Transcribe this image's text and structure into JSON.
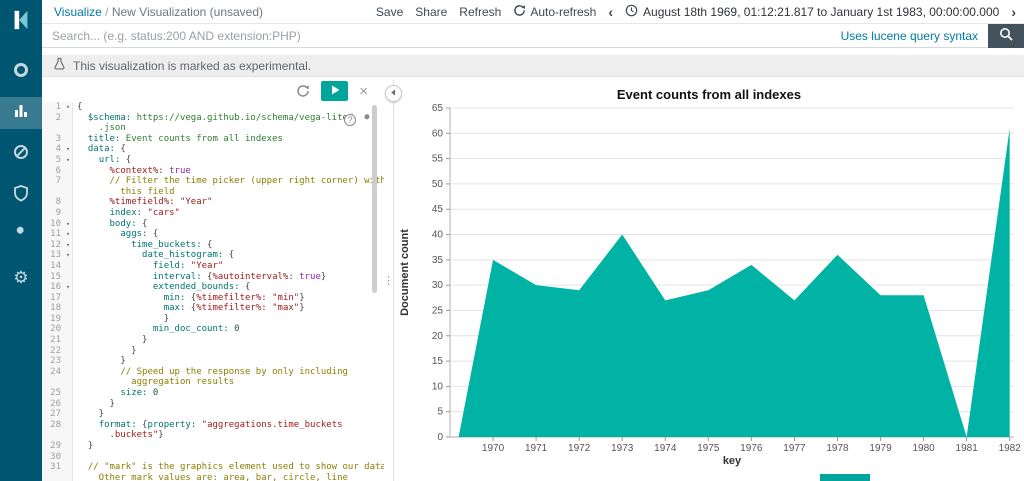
{
  "colors": {
    "sidebar_bg": "#005571",
    "accent_teal": "#00A69B",
    "chart_fill": "#00B3A4",
    "link_teal": "#0079A5",
    "dark_button": "#44525E"
  },
  "topbar": {
    "breadcrumb": {
      "app": "Visualize",
      "separator": " / ",
      "page": "New Visualization (unsaved)"
    },
    "save_label": "Save",
    "share_label": "Share",
    "refresh_label": "Refresh",
    "auto_refresh_label": "Auto-refresh",
    "prev_arrow": "‹",
    "next_arrow": "›",
    "time_range": "August 18th 1969, 01:12:21.817 to January 1st 1983, 00:00:00.000"
  },
  "search": {
    "placeholder": "Search... (e.g. status:200 AND extension:PHP)",
    "syntax_hint": "Uses lucene query syntax"
  },
  "notice": {
    "text": "This visualization is marked as experimental."
  },
  "sidebar": {
    "items": [
      {
        "name": "discover",
        "icon": "ring-icon",
        "active": false
      },
      {
        "name": "visualize",
        "icon": "bar-chart-icon",
        "active": true
      },
      {
        "name": "timelion",
        "icon": "slashed-circle-icon",
        "active": false
      },
      {
        "name": "monitoring",
        "icon": "shield-icon",
        "active": false
      },
      {
        "name": "dev-tools",
        "icon": "wrench-icon",
        "active": false
      },
      {
        "name": "management",
        "icon": "gear-icon",
        "active": false
      }
    ],
    "gear_glyph": "⚙"
  },
  "ui": {
    "resizer_glyph": "⋮",
    "help_glyph": "?"
  },
  "editor": {
    "close_label": "×",
    "fold_glyph": "▾",
    "lines": [
      {
        "n": "1",
        "f": true,
        "seg": [
          [
            "p",
            "{"
          ]
        ]
      },
      {
        "n": "2",
        "seg": [
          [
            "p",
            "  "
          ],
          [
            "k",
            "$schema:"
          ],
          [
            "u",
            " https://vega.github.io/schema/vega-lite/"
          ]
        ]
      },
      {
        "n": "",
        "seg": [
          [
            "u",
            "    .json"
          ]
        ]
      },
      {
        "n": "3",
        "seg": [
          [
            "p",
            "  "
          ],
          [
            "k",
            "title:"
          ],
          [
            "u",
            " Event counts from all indexes"
          ]
        ]
      },
      {
        "n": "4",
        "f": true,
        "seg": [
          [
            "p",
            "  "
          ],
          [
            "k",
            "data:"
          ],
          [
            "p",
            " {"
          ]
        ]
      },
      {
        "n": "5",
        "f": true,
        "seg": [
          [
            "p",
            "    "
          ],
          [
            "k",
            "url:"
          ],
          [
            "p",
            " {"
          ]
        ]
      },
      {
        "n": "6",
        "seg": [
          [
            "p",
            "      "
          ],
          [
            "m",
            "%context%:"
          ],
          [
            "a",
            " true"
          ]
        ]
      },
      {
        "n": "7",
        "seg": [
          [
            "c",
            "      // Filter the time picker (upper right corner) with"
          ]
        ]
      },
      {
        "n": "",
        "seg": [
          [
            "c",
            "        this field"
          ]
        ]
      },
      {
        "n": "8",
        "seg": [
          [
            "p",
            "      "
          ],
          [
            "m",
            "%timefield%:"
          ],
          [
            "s",
            " \"Year\""
          ]
        ]
      },
      {
        "n": "9",
        "seg": [
          [
            "p",
            "      "
          ],
          [
            "k",
            "index:"
          ],
          [
            "s",
            " \"cars\""
          ]
        ]
      },
      {
        "n": "10",
        "f": true,
        "seg": [
          [
            "p",
            "      "
          ],
          [
            "k",
            "body:"
          ],
          [
            "p",
            " {"
          ]
        ]
      },
      {
        "n": "11",
        "f": true,
        "seg": [
          [
            "p",
            "        "
          ],
          [
            "k",
            "aggs:"
          ],
          [
            "p",
            " {"
          ]
        ]
      },
      {
        "n": "12",
        "f": true,
        "seg": [
          [
            "p",
            "          "
          ],
          [
            "k",
            "time_buckets:"
          ],
          [
            "p",
            " {"
          ]
        ]
      },
      {
        "n": "13",
        "f": true,
        "seg": [
          [
            "p",
            "            "
          ],
          [
            "k",
            "date_histogram:"
          ],
          [
            "p",
            " {"
          ]
        ]
      },
      {
        "n": "14",
        "seg": [
          [
            "p",
            "              "
          ],
          [
            "k",
            "field:"
          ],
          [
            "s",
            " \"Year\""
          ]
        ]
      },
      {
        "n": "15",
        "seg": [
          [
            "p",
            "              "
          ],
          [
            "k",
            "interval:"
          ],
          [
            "p",
            " {"
          ],
          [
            "m",
            "%autointerval%:"
          ],
          [
            "a",
            " true"
          ],
          [
            "p",
            "}"
          ]
        ]
      },
      {
        "n": "16",
        "f": true,
        "seg": [
          [
            "p",
            "              "
          ],
          [
            "k",
            "extended_bounds:"
          ],
          [
            "p",
            " {"
          ]
        ]
      },
      {
        "n": "17",
        "seg": [
          [
            "p",
            "                "
          ],
          [
            "k",
            "min:"
          ],
          [
            "p",
            " {"
          ],
          [
            "m",
            "%timefilter%:"
          ],
          [
            "s",
            " \"min\""
          ],
          [
            "p",
            "}"
          ]
        ]
      },
      {
        "n": "18",
        "seg": [
          [
            "p",
            "                "
          ],
          [
            "k",
            "max:"
          ],
          [
            "p",
            " {"
          ],
          [
            "m",
            "%timefilter%:"
          ],
          [
            "s",
            " \"max\""
          ],
          [
            "p",
            "}"
          ]
        ]
      },
      {
        "n": "19",
        "seg": [
          [
            "p",
            "                }"
          ]
        ]
      },
      {
        "n": "20",
        "seg": [
          [
            "p",
            "              "
          ],
          [
            "k",
            "min_doc_count:"
          ],
          [
            "num",
            " 0"
          ]
        ]
      },
      {
        "n": "21",
        "seg": [
          [
            "p",
            "            }"
          ]
        ]
      },
      {
        "n": "22",
        "seg": [
          [
            "p",
            "          }"
          ]
        ]
      },
      {
        "n": "23",
        "seg": [
          [
            "p",
            "        }"
          ]
        ]
      },
      {
        "n": "24",
        "seg": [
          [
            "c",
            "        // Speed up the response by only including"
          ]
        ]
      },
      {
        "n": "",
        "seg": [
          [
            "c",
            "          aggregation results"
          ]
        ]
      },
      {
        "n": "25",
        "seg": [
          [
            "p",
            "        "
          ],
          [
            "k",
            "size:"
          ],
          [
            "num",
            " 0"
          ]
        ]
      },
      {
        "n": "26",
        "seg": [
          [
            "p",
            "      }"
          ]
        ]
      },
      {
        "n": "27",
        "seg": [
          [
            "p",
            "    }"
          ]
        ]
      },
      {
        "n": "28",
        "seg": [
          [
            "p",
            "    "
          ],
          [
            "k",
            "format:"
          ],
          [
            "p",
            " {"
          ],
          [
            "k",
            "property:"
          ],
          [
            "s",
            " \"aggregations.time_buckets"
          ]
        ]
      },
      {
        "n": "",
        "seg": [
          [
            "s",
            "      .buckets\""
          ],
          [
            "p",
            "}"
          ]
        ]
      },
      {
        "n": "29",
        "seg": [
          [
            "p",
            "  }"
          ]
        ]
      },
      {
        "n": "30",
        "seg": []
      },
      {
        "n": "31",
        "seg": [
          [
            "c",
            "  // \"mark\" is the graphics element used to show our data."
          ]
        ]
      },
      {
        "n": "",
        "seg": [
          [
            "c",
            "    Other mark values are: area, bar, circle, line"
          ]
        ]
      }
    ]
  },
  "chart_data": {
    "type": "area",
    "title": "Event counts from all indexes",
    "xlabel": "key",
    "ylabel": "Document count",
    "x": [
      1970,
      1971,
      1972,
      1973,
      1974,
      1975,
      1976,
      1977,
      1978,
      1979,
      1980,
      1981,
      1982
    ],
    "values": [
      35,
      30,
      29,
      40,
      27,
      29,
      34,
      27,
      36,
      28,
      28,
      0,
      61
    ],
    "leading_point": {
      "x": 1969.2,
      "y": 0
    },
    "x_domain": [
      1969.0,
      1982.1
    ],
    "ylim": [
      0,
      65
    ],
    "ytick_step": 5,
    "color": "#00B3A4",
    "grid": "horizontal",
    "legend": "none"
  }
}
